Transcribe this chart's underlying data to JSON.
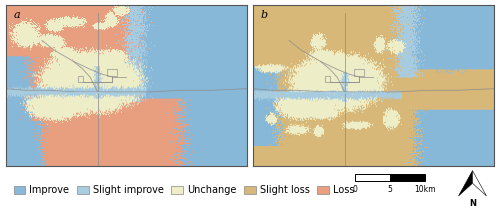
{
  "fig_width": 5.0,
  "fig_height": 2.06,
  "dpi": 100,
  "background_color": "#ffffff",
  "panel_a_label": "a",
  "panel_b_label": "b",
  "legend_items": [
    {
      "label": "Improve",
      "color": "#89b8d8"
    },
    {
      "label": "Slight improve",
      "color": "#a8cce0"
    },
    {
      "label": "Unchange",
      "color": "#eeeec8"
    },
    {
      "label": "Slight loss",
      "color": "#d8b87a"
    },
    {
      "label": "Loss",
      "color": "#e8a080"
    }
  ],
  "color_improve": [
    0.537,
    0.722,
    0.847
  ],
  "color_slight_imp": [
    0.659,
    0.8,
    0.878
  ],
  "color_unchange": [
    0.933,
    0.933,
    0.784
  ],
  "color_slight_loss": [
    0.847,
    0.722,
    0.478
  ],
  "color_loss": [
    0.91,
    0.627,
    0.502
  ],
  "color_line": [
    0.55,
    0.55,
    0.55
  ],
  "color_river": [
    0.659,
    0.8,
    0.878
  ],
  "panel_border": "#555555",
  "label_fontsize": 8,
  "legend_fontsize": 7,
  "scalebar_ticks": [
    "0",
    "5",
    "10km"
  ],
  "north_label": "N"
}
